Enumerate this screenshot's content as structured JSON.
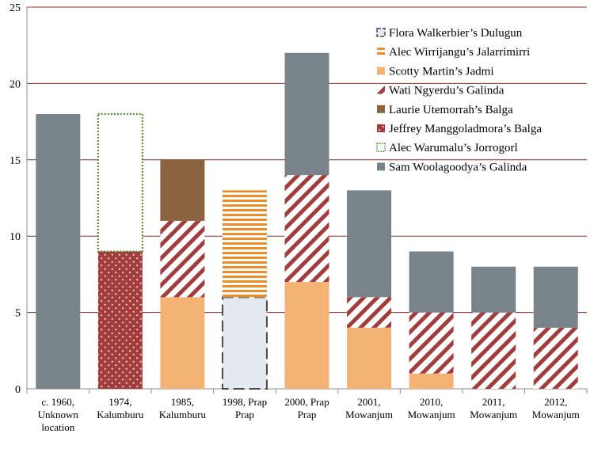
{
  "chart_data": {
    "type": "bar",
    "stacked": true,
    "title": "",
    "xlabel": "",
    "ylabel": "",
    "ylim": [
      0,
      25
    ],
    "yticks": [
      0,
      5,
      10,
      15,
      20,
      25
    ],
    "grid": true,
    "legend_position": "top-right",
    "categories": [
      [
        "c. 1960,",
        "Unknown",
        "location"
      ],
      [
        "1974,",
        "Kalumburu"
      ],
      [
        "1985,",
        "Kalumburu"
      ],
      [
        "1998, Prap",
        "Prap"
      ],
      [
        "2000, Prap",
        "Prap"
      ],
      [
        "2001,",
        "Mowanjum"
      ],
      [
        "2010,",
        "Mowanjum"
      ],
      [
        "2011,",
        "Mowanjum"
      ],
      [
        "2012,",
        "Mowanjum"
      ]
    ],
    "series": [
      {
        "name": "Scotty Martin’s Jadmi",
        "key": "scotty",
        "pattern": "solid-orange",
        "color": "#f4b274",
        "values": [
          0,
          0,
          6,
          0,
          7,
          4,
          1,
          0,
          0
        ]
      },
      {
        "name": "Flora Walkerbier’s Dulugun",
        "key": "flora",
        "pattern": "dashed-outline",
        "color": "#e4e8f0",
        "values": [
          0,
          0,
          0,
          6,
          0,
          0,
          0,
          0,
          0
        ]
      },
      {
        "name": "Jeffrey Manggoladmora’s Balga",
        "key": "jeffrey",
        "pattern": "dotted-red",
        "color": "#a33c3c",
        "values": [
          0,
          9,
          0,
          0,
          0,
          0,
          0,
          0,
          0
        ]
      },
      {
        "name": "Wati Ngyerdu’s Galinda",
        "key": "wati",
        "pattern": "diagonal-stripes",
        "color": "#a33c3c",
        "values": [
          0,
          0,
          5,
          0,
          7,
          2,
          4,
          5,
          4
        ]
      },
      {
        "name": "Alec Wirrijangu’s Jalarrimirri",
        "key": "alec_w",
        "pattern": "horizontal-stripes",
        "color": "#f08c28",
        "values": [
          0,
          0,
          0,
          7,
          0,
          0,
          0,
          0,
          0
        ]
      },
      {
        "name": "Laurie Utemorrah’s Balga",
        "key": "laurie",
        "pattern": "solid-brown",
        "color": "#8b6340",
        "values": [
          0,
          0,
          4,
          0,
          0,
          0,
          0,
          0,
          0
        ]
      },
      {
        "name": "Alec Warumalu’s Jorrogorl",
        "key": "alec_wa",
        "pattern": "dotted-outline",
        "color": "#4a8a2a",
        "values": [
          0,
          9,
          0,
          0,
          0,
          0,
          0,
          0,
          0
        ]
      },
      {
        "name": "Sam Woolagoodya’s Galinda",
        "key": "sam",
        "pattern": "solid-gray",
        "color": "#78848a",
        "values": [
          18,
          0,
          0,
          0,
          8,
          7,
          4,
          3,
          4
        ]
      }
    ],
    "legend_order": [
      "flora",
      "alec_w",
      "scotty",
      "wati",
      "laurie",
      "jeffrey",
      "alec_wa",
      "sam"
    ]
  },
  "colors": {
    "gridline": "#8b2f2f",
    "axis": "#8c8c8c"
  }
}
